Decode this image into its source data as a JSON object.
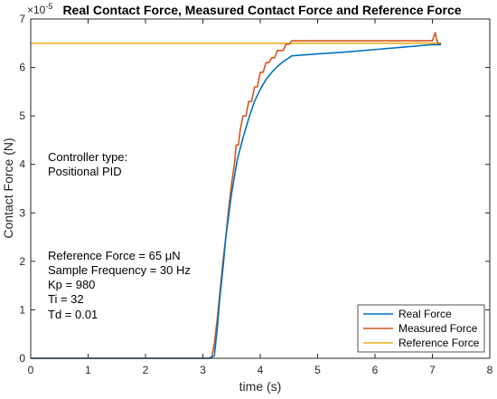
{
  "chart_data": {
    "type": "line",
    "title": "Real Contact Force, Measured Contact Force and Reference Force",
    "xlabel": "time (s)",
    "ylabel": "Contact Force (N)",
    "y_exponent_label": "×10",
    "y_exponent_power": "-5",
    "xlim": [
      0,
      8
    ],
    "ylim": [
      0,
      7
    ],
    "xticks": [
      0,
      1,
      2,
      3,
      4,
      5,
      6,
      7,
      8
    ],
    "yticks": [
      0,
      1,
      2,
      3,
      4,
      5,
      6,
      7
    ],
    "grid": false,
    "legend_position": "bottom-right",
    "series": [
      {
        "name": "Real Force",
        "color": "#0072BD",
        "x": [
          0,
          3.1,
          3.2,
          3.25,
          3.3,
          3.35,
          3.4,
          3.5,
          3.6,
          3.7,
          3.8,
          3.9,
          4.0,
          4.1,
          4.2,
          4.3,
          4.4,
          4.5,
          4.55,
          5.0,
          5.5,
          6.0,
          6.5,
          7.0,
          7.15
        ],
        "y": [
          0,
          0,
          0.05,
          0.6,
          1.3,
          1.85,
          2.5,
          3.4,
          4.1,
          4.55,
          4.95,
          5.3,
          5.55,
          5.75,
          5.9,
          6.02,
          6.12,
          6.2,
          6.24,
          6.28,
          6.32,
          6.37,
          6.42,
          6.47,
          6.47
        ]
      },
      {
        "name": "Measured Force",
        "color": "#D95319",
        "x": [
          0,
          3.15,
          3.2,
          3.25,
          3.3,
          3.35,
          3.4,
          3.45,
          3.5,
          3.55,
          3.58,
          3.62,
          3.65,
          3.7,
          3.75,
          3.8,
          3.85,
          3.9,
          3.95,
          4.0,
          4.05,
          4.1,
          4.15,
          4.2,
          4.25,
          4.3,
          4.35,
          4.4,
          4.45,
          4.5,
          4.55,
          5.0,
          6.0,
          7.0,
          7.05,
          7.08,
          7.1,
          7.15
        ],
        "y": [
          0,
          0,
          0.3,
          0.8,
          1.4,
          2.0,
          2.5,
          3.1,
          3.6,
          4.0,
          4.4,
          4.4,
          4.7,
          5.0,
          5.0,
          5.3,
          5.3,
          5.6,
          5.6,
          5.9,
          5.9,
          6.1,
          6.1,
          6.2,
          6.2,
          6.35,
          6.35,
          6.35,
          6.48,
          6.48,
          6.55,
          6.55,
          6.55,
          6.55,
          6.72,
          6.55,
          6.5,
          6.5
        ]
      },
      {
        "name": "Reference Force",
        "color": "#EDB120",
        "x": [
          0,
          7.15
        ],
        "y": [
          6.5,
          6.5
        ]
      }
    ],
    "annotations": [
      "Controller type:",
      "Positional PID",
      "Reference Force = 65 μN",
      "Sample Frequency = 30 Hz",
      "Kp = 980",
      "Ti = 32",
      "Td = 0.01"
    ]
  }
}
